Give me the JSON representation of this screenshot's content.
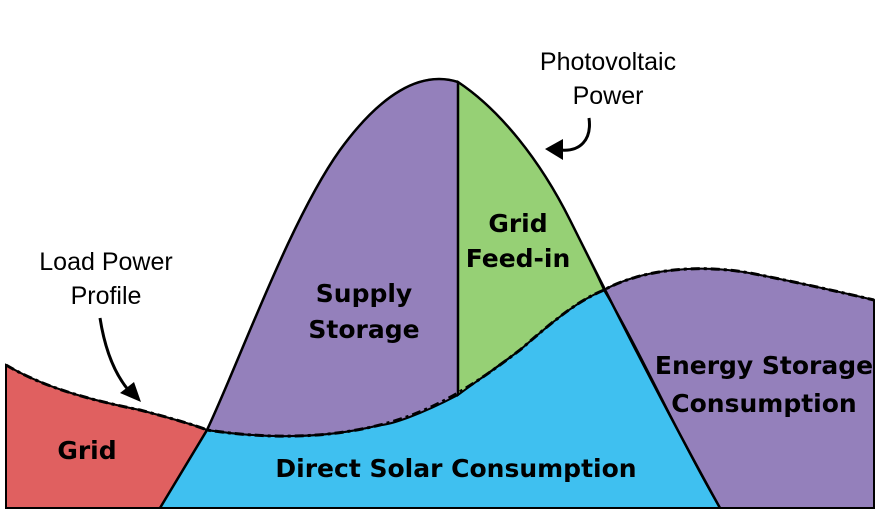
{
  "labels": {
    "photovoltaic_line1": "Photovoltaic",
    "photovoltaic_line2": "Power",
    "load_line1": "Load Power",
    "load_line2": "Profile",
    "grid": "Grid",
    "supply_line1": "Supply",
    "supply_line2": "Storage",
    "feedin_line1": "Grid",
    "feedin_line2": "Feed-in",
    "direct_solar": "Direct Solar Consumption",
    "energy_line1": "Energy Storage",
    "energy_line2": "Consumption"
  },
  "colors": {
    "grid": "#e06060",
    "storage": "#9480bb",
    "feedin": "#96d075",
    "direct_solar": "#3fc0f0",
    "outline": "#000000"
  }
}
